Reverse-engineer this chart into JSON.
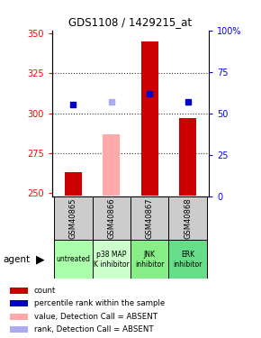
{
  "title": "GDS1108 / 1429215_at",
  "samples": [
    "GSM40865",
    "GSM40866",
    "GSM40867",
    "GSM40868"
  ],
  "agents": [
    "untreated",
    "p38 MAP\nK inhibitor",
    "JNK\ninhibitor",
    "ERK\ninhibitor"
  ],
  "agent_colors": [
    "#aaffaa",
    "#ccffcc",
    "#88ee88",
    "#66dd88"
  ],
  "sample_bg_color": "#cccccc",
  "ylim_left": [
    248,
    352
  ],
  "ylim_right": [
    0,
    100
  ],
  "yticks_left": [
    250,
    275,
    300,
    325,
    350
  ],
  "yticks_right": [
    0,
    25,
    50,
    75,
    100
  ],
  "ytick_labels_right": [
    "0",
    "25",
    "50",
    "75",
    "100%"
  ],
  "bar_values": [
    263,
    287,
    345,
    297
  ],
  "bar_absent": [
    false,
    true,
    false,
    false
  ],
  "rank_values": [
    55,
    57,
    62,
    57
  ],
  "rank_absent": [
    false,
    true,
    false,
    false
  ],
  "bar_color_present": "#cc0000",
  "bar_color_absent": "#ffaaaa",
  "rank_color_present": "#0000cc",
  "rank_color_absent": "#aaaaee",
  "bar_width": 0.45,
  "baseline": 248,
  "grid_yticks": [
    275,
    300,
    325
  ],
  "legend_items": [
    {
      "color": "#cc0000",
      "label": "count"
    },
    {
      "color": "#0000cc",
      "label": "percentile rank within the sample"
    },
    {
      "color": "#ffaaaa",
      "label": "value, Detection Call = ABSENT"
    },
    {
      "color": "#aaaaee",
      "label": "rank, Detection Call = ABSENT"
    }
  ]
}
